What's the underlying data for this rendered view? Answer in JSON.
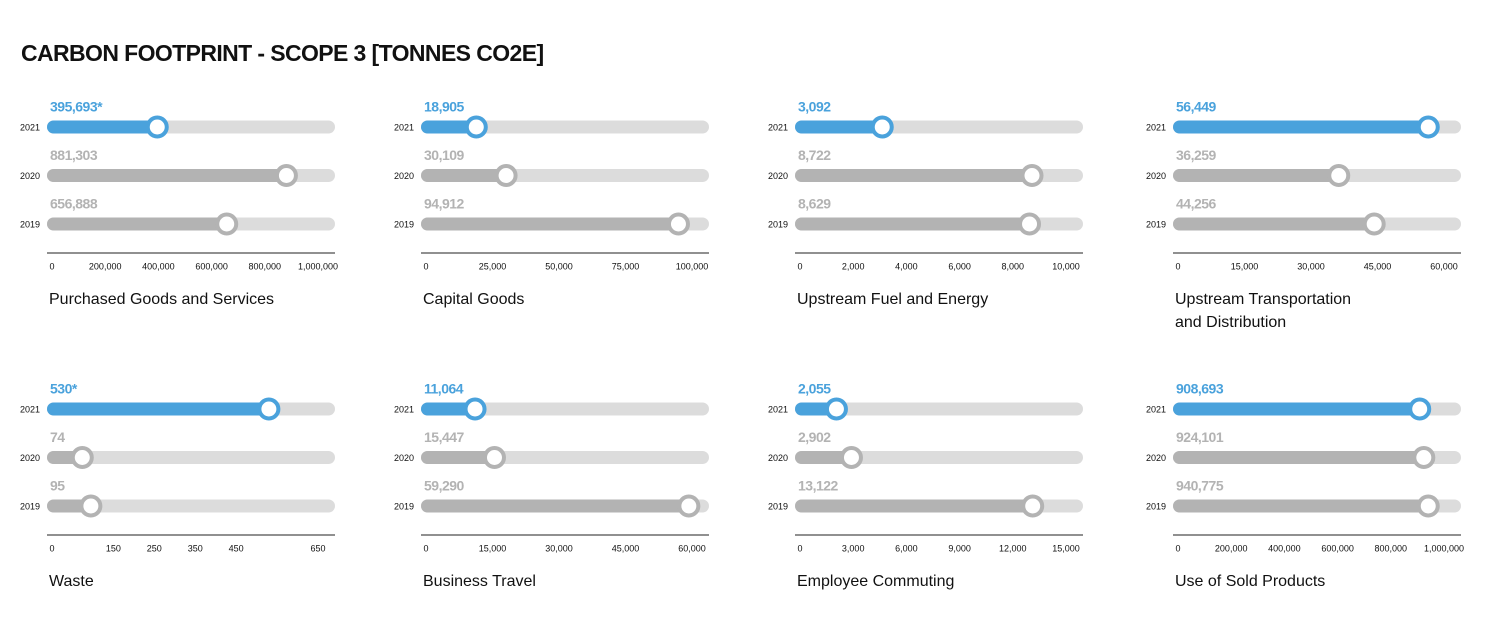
{
  "title": "CARBON FOOTPRINT - SCOPE 3 [TONNES CO2E]",
  "chart_data": [
    {
      "type": "bar",
      "title": [
        "Purchased Goods and Services"
      ],
      "categories": [
        "2021",
        "2020",
        "2019"
      ],
      "values": [
        395693,
        881303,
        656888
      ],
      "value_labels": [
        "395,693*",
        "881,303",
        "656,888"
      ],
      "colors": [
        "#4aa2dc",
        "#b3b3b3",
        "#b3b3b3"
      ],
      "xlim": [
        0,
        1000000
      ],
      "xticks": [
        0,
        {
          "value": 200000,
          "label": "200,000"
        },
        {
          "value": 400000,
          "label": "400,000"
        },
        {
          "value": 600000,
          "label": "600,000"
        },
        {
          "value": 800000,
          "label": "800,000"
        },
        {
          "value": 1000000,
          "label": "1,000,000"
        }
      ]
    },
    {
      "type": "bar",
      "title": [
        "Capital Goods"
      ],
      "categories": [
        "2021",
        "2020",
        "2019"
      ],
      "values": [
        18905,
        30109,
        94912
      ],
      "value_labels": [
        "18,905",
        "30,109",
        "94,912"
      ],
      "colors": [
        "#4aa2dc",
        "#b3b3b3",
        "#b3b3b3"
      ],
      "xlim": [
        0,
        100000
      ],
      "xticks": [
        0,
        {
          "value": 25000,
          "label": "25,000"
        },
        {
          "value": 50000,
          "label": "50,000"
        },
        {
          "value": 75000,
          "label": "75,000"
        },
        {
          "value": 100000,
          "label": "100,000"
        }
      ]
    },
    {
      "type": "bar",
      "title": [
        "Upstream Fuel and Energy"
      ],
      "categories": [
        "2021",
        "2020",
        "2019"
      ],
      "values": [
        3092,
        8722,
        8629
      ],
      "value_labels": [
        "3,092",
        "8,722",
        "8,629"
      ],
      "colors": [
        "#4aa2dc",
        "#b3b3b3",
        "#b3b3b3"
      ],
      "xlim": [
        0,
        10000
      ],
      "xticks": [
        0,
        {
          "value": 2000,
          "label": "2,000"
        },
        {
          "value": 4000,
          "label": "4,000"
        },
        {
          "value": 6000,
          "label": "6,000"
        },
        {
          "value": 8000,
          "label": "8,000"
        },
        {
          "value": 10000,
          "label": "10,000"
        }
      ]
    },
    {
      "type": "bar",
      "title": [
        "Upstream Transportation",
        "and Distribution"
      ],
      "categories": [
        "2021",
        "2020",
        "2019"
      ],
      "values": [
        56449,
        36259,
        44256
      ],
      "value_labels": [
        "56,449",
        "36,259",
        "44,256"
      ],
      "colors": [
        "#4aa2dc",
        "#b3b3b3",
        "#b3b3b3"
      ],
      "xlim": [
        0,
        60000
      ],
      "xticks": [
        0,
        {
          "value": 15000,
          "label": "15,000"
        },
        {
          "value": 30000,
          "label": "30,000"
        },
        {
          "value": 45000,
          "label": "45,000"
        },
        {
          "value": 60000,
          "label": "60,000"
        }
      ]
    },
    {
      "type": "bar",
      "title": [
        "Waste"
      ],
      "categories": [
        "2021",
        "2020",
        "2019"
      ],
      "values": [
        530,
        74,
        95
      ],
      "value_labels": [
        "530*",
        "74",
        "95"
      ],
      "colors": [
        "#4aa2dc",
        "#b3b3b3",
        "#b3b3b3"
      ],
      "xlim": [
        0,
        650
      ],
      "xticks": [
        0,
        150,
        250,
        350,
        450,
        650
      ]
    },
    {
      "type": "bar",
      "title": [
        "Business Travel"
      ],
      "categories": [
        "2021",
        "2020",
        "2019"
      ],
      "values": [
        11064,
        15447,
        59290
      ],
      "value_labels": [
        "11,064",
        "15,447",
        "59,290"
      ],
      "colors": [
        "#4aa2dc",
        "#b3b3b3",
        "#b3b3b3"
      ],
      "xlim": [
        0,
        60000
      ],
      "xticks": [
        0,
        {
          "value": 15000,
          "label": "15,000"
        },
        {
          "value": 30000,
          "label": "30,000"
        },
        {
          "value": 45000,
          "label": "45,000"
        },
        {
          "value": 60000,
          "label": "60,000"
        }
      ]
    },
    {
      "type": "bar",
      "title": [
        "Employee Commuting"
      ],
      "categories": [
        "2021",
        "2020",
        "2019"
      ],
      "values": [
        2055,
        2902,
        13122
      ],
      "value_labels": [
        "2,055",
        "2,902",
        "13,122"
      ],
      "colors": [
        "#4aa2dc",
        "#b3b3b3",
        "#b3b3b3"
      ],
      "xlim": [
        0,
        15000
      ],
      "xticks": [
        0,
        {
          "value": 3000,
          "label": "3,000"
        },
        {
          "value": 6000,
          "label": "6,000"
        },
        {
          "value": 9000,
          "label": "9,000"
        },
        {
          "value": 12000,
          "label": "12,000"
        },
        {
          "value": 15000,
          "label": "15,000"
        }
      ]
    },
    {
      "type": "bar",
      "title": [
        "Use of Sold Products"
      ],
      "categories": [
        "2021",
        "2020",
        "2019"
      ],
      "values": [
        908693,
        924101,
        940775
      ],
      "value_labels": [
        "908,693",
        "924,101",
        "940,775"
      ],
      "colors": [
        "#4aa2dc",
        "#b3b3b3",
        "#b3b3b3"
      ],
      "xlim": [
        0,
        1000000
      ],
      "xticks": [
        0,
        {
          "value": 200000,
          "label": "200,000"
        },
        {
          "value": 400000,
          "label": "400,000"
        },
        {
          "value": 600000,
          "label": "600,000"
        },
        {
          "value": 800000,
          "label": "800,000"
        },
        {
          "value": 1000000,
          "label": "1,000,000"
        }
      ]
    }
  ]
}
